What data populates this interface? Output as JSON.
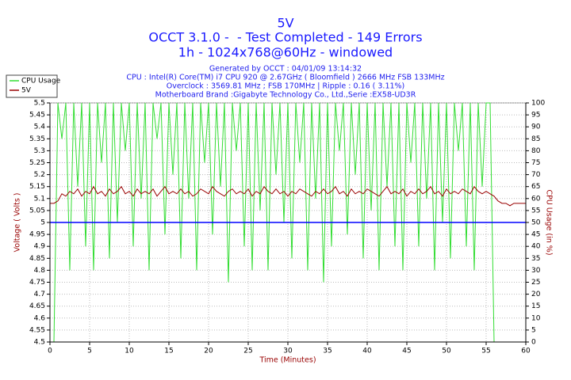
{
  "chart_data": {
    "type": "line",
    "title": "5V",
    "subtitle": "OCCT 3.1.0 -  - Test Completed - 149 Errors",
    "subtitle2": "1h - 1024x768@60Hz - windowed",
    "info": [
      "Generated by OCCT : 04/01/09 13:14:32",
      "CPU : Intel(R) Core(TM) i7 CPU 920 @ 2.67GHz ( Bloomfield ) 2666 MHz FSB 133MHz",
      "Overclock : 3569.81 MHz ; FSB 170MHz | Ripple : 0.16 ( 3.11%)",
      "Motherboard Brand :Gigabyte Technology Co., Ltd.,Serie :EX58-UD3R"
    ],
    "x_label": "Time (Minutes)",
    "y_label": "Voltage ( Volts )",
    "y2_label": "CPU Usage (in %)",
    "xlim": [
      0,
      60
    ],
    "xticks": [
      0,
      5,
      10,
      15,
      20,
      25,
      30,
      35,
      40,
      45,
      50,
      55,
      60
    ],
    "ylim": [
      4.5,
      5.5
    ],
    "yticks": [
      4.5,
      4.55,
      4.6,
      4.65,
      4.7,
      4.75,
      4.8,
      4.85,
      4.9,
      4.95,
      5,
      5.05,
      5.1,
      5.15,
      5.2,
      5.25,
      5.3,
      5.35,
      5.4,
      5.45,
      5.5
    ],
    "y2lim": [
      0,
      100
    ],
    "y2ticks": [
      0,
      5,
      10,
      15,
      20,
      25,
      30,
      35,
      40,
      45,
      50,
      55,
      60,
      65,
      70,
      75,
      80,
      85,
      90,
      95,
      100
    ],
    "grid": true,
    "legend": "top-left",
    "reference_line": {
      "value": 5,
      "color": "#0000ff"
    },
    "x": [
      0,
      0.5,
      1,
      1.5,
      2,
      2.5,
      3,
      3.5,
      4,
      4.5,
      5,
      5.5,
      6,
      6.5,
      7,
      7.5,
      8,
      8.5,
      9,
      9.5,
      10,
      10.5,
      11,
      11.5,
      12,
      12.5,
      13,
      13.5,
      14,
      14.5,
      15,
      15.5,
      16,
      16.5,
      17,
      17.5,
      18,
      18.5,
      19,
      19.5,
      20,
      20.5,
      21,
      21.5,
      22,
      22.5,
      23,
      23.5,
      24,
      24.5,
      25,
      25.5,
      26,
      26.5,
      27,
      27.5,
      28,
      28.5,
      29,
      29.5,
      30,
      30.5,
      31,
      31.5,
      32,
      32.5,
      33,
      33.5,
      34,
      34.5,
      35,
      35.5,
      36,
      36.5,
      37,
      37.5,
      38,
      38.5,
      39,
      39.5,
      40,
      40.5,
      41,
      41.5,
      42,
      42.5,
      43,
      43.5,
      44,
      44.5,
      45,
      45.5,
      46,
      46.5,
      47,
      47.5,
      48,
      48.5,
      49,
      49.5,
      50,
      50.5,
      51,
      51.5,
      52,
      52.5,
      53,
      53.5,
      54,
      54.5,
      55,
      55.5,
      56,
      56.5,
      57,
      57.5,
      58,
      58.5,
      59,
      59.5,
      60
    ],
    "series": [
      {
        "name": "CPU Usage",
        "color": "#33dd33",
        "axis": "y2",
        "values": [
          0,
          0,
          100,
          85,
          100,
          30,
          100,
          65,
          100,
          40,
          100,
          30,
          100,
          75,
          100,
          35,
          100,
          50,
          100,
          80,
          100,
          40,
          100,
          60,
          100,
          30,
          100,
          85,
          100,
          45,
          100,
          70,
          100,
          35,
          100,
          60,
          100,
          30,
          100,
          75,
          100,
          45,
          100,
          65,
          100,
          25,
          100,
          80,
          100,
          40,
          100,
          30,
          100,
          55,
          100,
          30,
          100,
          70,
          100,
          50,
          100,
          35,
          100,
          75,
          100,
          30,
          100,
          60,
          100,
          25,
          100,
          40,
          100,
          80,
          100,
          45,
          100,
          70,
          100,
          35,
          100,
          55,
          100,
          30,
          100,
          65,
          100,
          40,
          100,
          30,
          100,
          75,
          100,
          40,
          100,
          60,
          100,
          30,
          100,
          50,
          100,
          35,
          100,
          80,
          100,
          40,
          100,
          30,
          100,
          65,
          100,
          100,
          0,
          0,
          0,
          0,
          0,
          0,
          0,
          0,
          0
        ]
      },
      {
        "name": "5V",
        "color": "#990000",
        "values": [
          5.08,
          5.08,
          5.09,
          5.12,
          5.11,
          5.13,
          5.12,
          5.14,
          5.11,
          5.13,
          5.12,
          5.15,
          5.12,
          5.13,
          5.11,
          5.14,
          5.12,
          5.13,
          5.15,
          5.12,
          5.13,
          5.11,
          5.14,
          5.12,
          5.13,
          5.12,
          5.14,
          5.11,
          5.13,
          5.15,
          5.12,
          5.13,
          5.12,
          5.14,
          5.12,
          5.13,
          5.11,
          5.12,
          5.14,
          5.13,
          5.12,
          5.15,
          5.13,
          5.12,
          5.11,
          5.13,
          5.14,
          5.12,
          5.13,
          5.12,
          5.14,
          5.11,
          5.13,
          5.12,
          5.15,
          5.13,
          5.12,
          5.14,
          5.12,
          5.13,
          5.11,
          5.13,
          5.12,
          5.14,
          5.13,
          5.12,
          5.11,
          5.13,
          5.12,
          5.14,
          5.12,
          5.13,
          5.15,
          5.12,
          5.13,
          5.11,
          5.14,
          5.12,
          5.13,
          5.12,
          5.14,
          5.13,
          5.12,
          5.11,
          5.13,
          5.15,
          5.12,
          5.13,
          5.12,
          5.14,
          5.11,
          5.13,
          5.12,
          5.14,
          5.12,
          5.13,
          5.15,
          5.12,
          5.13,
          5.11,
          5.14,
          5.12,
          5.13,
          5.12,
          5.14,
          5.13,
          5.12,
          5.15,
          5.13,
          5.12,
          5.13,
          5.12,
          5.11,
          5.09,
          5.08,
          5.08,
          5.07,
          5.08,
          5.08,
          5.08,
          5.08
        ]
      }
    ]
  }
}
